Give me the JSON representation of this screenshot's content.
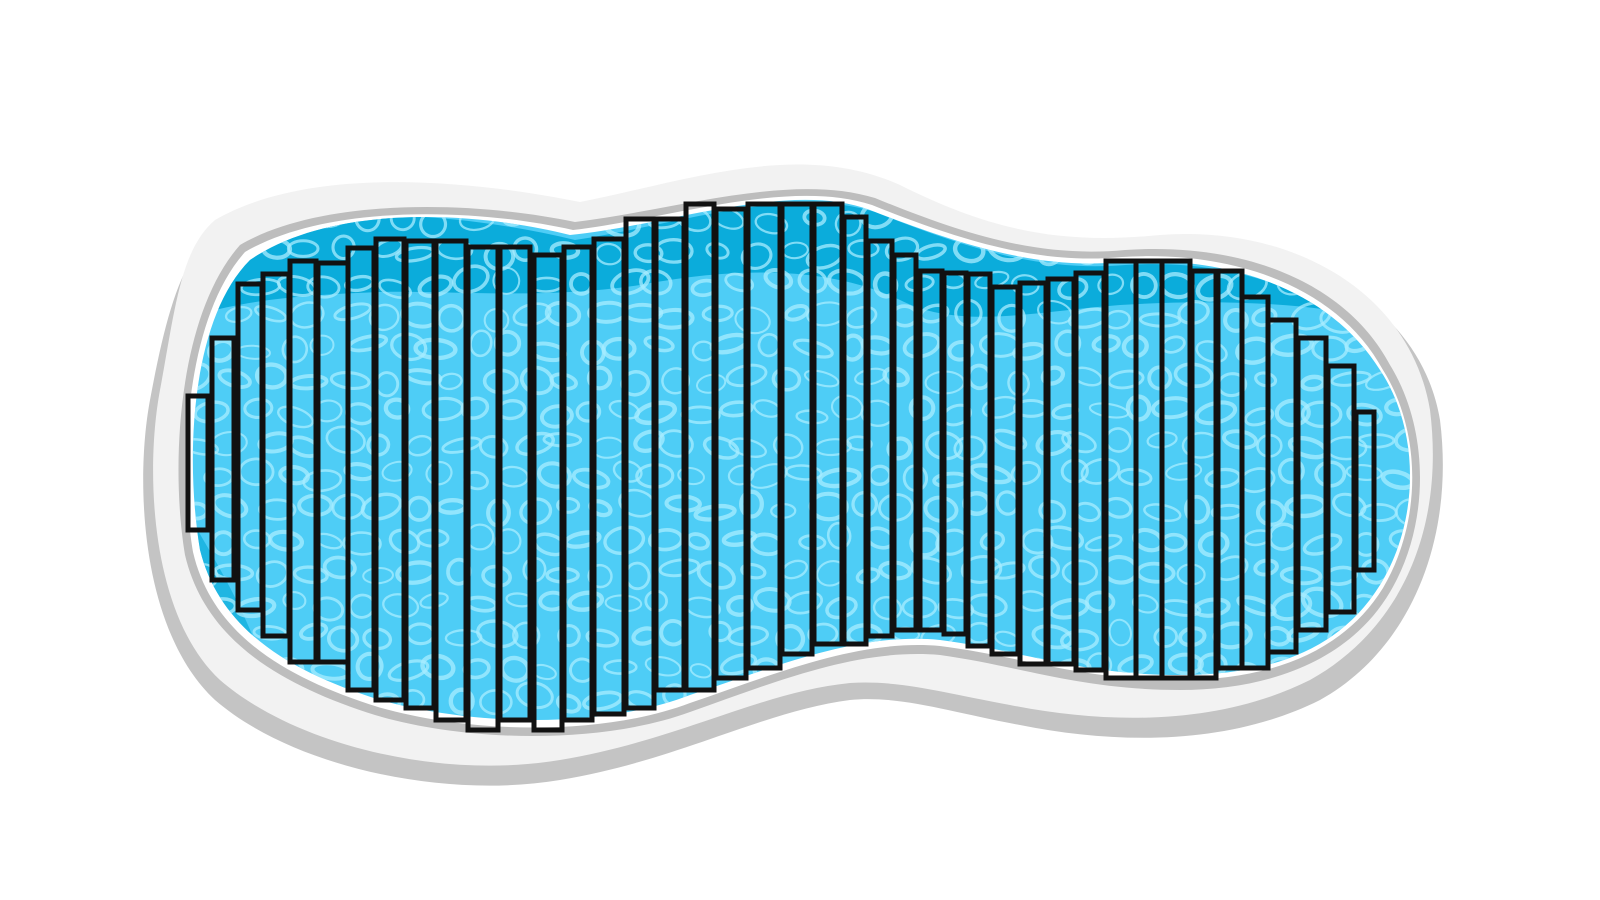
{
  "scene": {
    "name": "swimming-pool-area-grid",
    "shape": "kidney-shaped pool",
    "count_label": "",
    "grid": {
      "type": "vertical rectangle strips",
      "strip_count": 43
    },
    "colors": {
      "background": "#ffffff",
      "deck_shadow": "#c4c4c4",
      "deck": "#f2f2f2",
      "rim_shadow": "#bdbdbd",
      "rim": "#ffffff",
      "water_deep": "#00a6d6",
      "water": "#4ecdf6",
      "water_highlight": "#a8ecff",
      "strip_stroke": "#111111"
    }
  }
}
